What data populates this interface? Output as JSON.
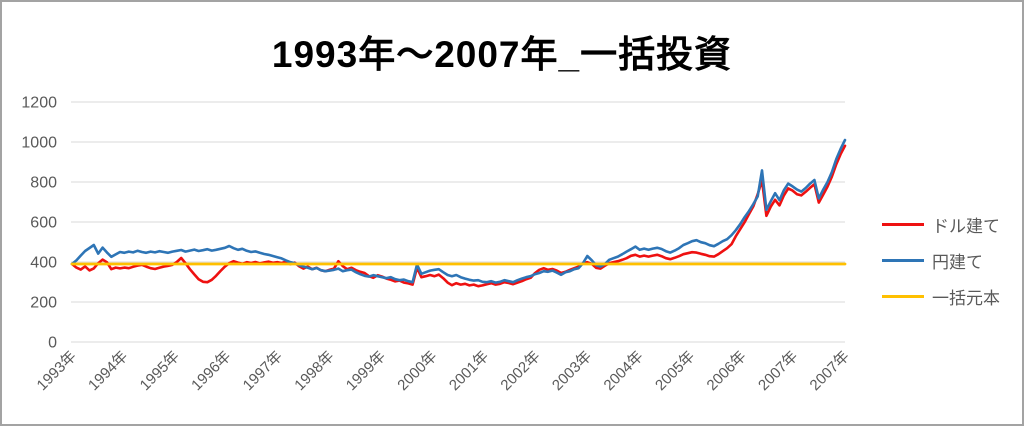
{
  "frame": {
    "border_color": "#a3a3a3",
    "background": "#ffffff"
  },
  "chart_data": {
    "type": "line",
    "title": "1993年〜2007年_一括投資",
    "title_color": "#000000",
    "text_color": "#595959",
    "grid": {
      "horizontal": true,
      "vertical": false,
      "color": "#d9d9d9"
    },
    "legend": {
      "position": "right"
    },
    "y_axis": {
      "min": 0,
      "max": 1200,
      "ticks": [
        1200,
        1000,
        800,
        600,
        400,
        200,
        0
      ]
    },
    "x_axis": {
      "labels": [
        "1993年",
        "1994年",
        "1995年",
        "1996年",
        "1997年",
        "1998年",
        "1999年",
        "2000年",
        "2001年",
        "2002年",
        "2003年",
        "2004年",
        "2005年",
        "2006年",
        "2007年",
        "2007年"
      ],
      "start_year": 1993,
      "points_per_year": 12
    },
    "series": [
      {
        "name": "ドル建て",
        "color": "#ee1111",
        "width": 2.6,
        "values": [
          390,
          372,
          362,
          378,
          358,
          368,
          394,
          412,
          399,
          364,
          372,
          368,
          372,
          369,
          376,
          382,
          386,
          377,
          369,
          365,
          371,
          377,
          381,
          386,
          400,
          420,
          394,
          364,
          338,
          314,
          301,
          299,
          311,
          331,
          355,
          377,
          394,
          404,
          397,
          391,
          399,
          395,
          400,
          393,
          398,
          402,
          396,
          399,
          395,
          402,
          389,
          397,
          379,
          367,
          377,
          364,
          371,
          359,
          354,
          361,
          367,
          404,
          379,
          364,
          371,
          359,
          351,
          345,
          329,
          321,
          334,
          327,
          317,
          311,
          303,
          307,
          297,
          293,
          287,
          371,
          324,
          329,
          335,
          329,
          337,
          319,
          297,
          284,
          294,
          287,
          291,
          283,
          287,
          279,
          283,
          289,
          294,
          287,
          291,
          299,
          295,
          289,
          297,
          304,
          314,
          321,
          344,
          361,
          369,
          361,
          365,
          357,
          345,
          351,
          361,
          369,
          377,
          394,
          399,
          391,
          371,
          367,
          381,
          394,
          399,
          404,
          411,
          419,
          431,
          436,
          427,
          432,
          427,
          432,
          436,
          429,
          419,
          414,
          421,
          429,
          439,
          444,
          449,
          447,
          441,
          436,
          429,
          427,
          439,
          454,
          469,
          489,
          529,
          564,
          599,
          639,
          678,
          739,
          808,
          631,
          677,
          711,
          683,
          733,
          768,
          757,
          739,
          733,
          751,
          771,
          789,
          697,
          737,
          777,
          827,
          889,
          939,
          981
        ]
      },
      {
        "name": "円建て",
        "color": "#2e75b6",
        "width": 2.6,
        "values": [
          390,
          408,
          432,
          455,
          470,
          485,
          442,
          472,
          448,
          426,
          438,
          450,
          446,
          452,
          448,
          456,
          450,
          446,
          452,
          448,
          454,
          450,
          446,
          452,
          456,
          460,
          452,
          457,
          462,
          455,
          459,
          464,
          457,
          461,
          466,
          471,
          480,
          469,
          461,
          466,
          456,
          450,
          453,
          446,
          440,
          436,
          430,
          424,
          418,
          408,
          399,
          394,
          384,
          377,
          371,
          364,
          370,
          359,
          354,
          357,
          361,
          367,
          354,
          359,
          362,
          349,
          339,
          331,
          327,
          334,
          329,
          324,
          319,
          324,
          314,
          309,
          312,
          304,
          299,
          387,
          341,
          349,
          357,
          361,
          364,
          349,
          335,
          329,
          335,
          324,
          317,
          311,
          307,
          309,
          301,
          299,
          304,
          297,
          301,
          309,
          304,
          299,
          309,
          317,
          324,
          329,
          339,
          345,
          354,
          351,
          357,
          347,
          336,
          349,
          354,
          364,
          369,
          394,
          430,
          409,
          384,
          377,
          389,
          411,
          419,
          427,
          439,
          452,
          464,
          477,
          461,
          467,
          461,
          467,
          471,
          465,
          454,
          447,
          457,
          469,
          485,
          494,
          504,
          509,
          499,
          494,
          484,
          479,
          491,
          504,
          514,
          534,
          559,
          589,
          624,
          654,
          689,
          728,
          858,
          661,
          704,
          744,
          709,
          759,
          792,
          778,
          762,
          752,
          770,
          792,
          810,
          718,
          762,
          800,
          850,
          915,
          965,
          1010
        ]
      },
      {
        "name": "一括元本",
        "color": "#ffc000",
        "width": 2.8,
        "constant": 390
      }
    ]
  }
}
